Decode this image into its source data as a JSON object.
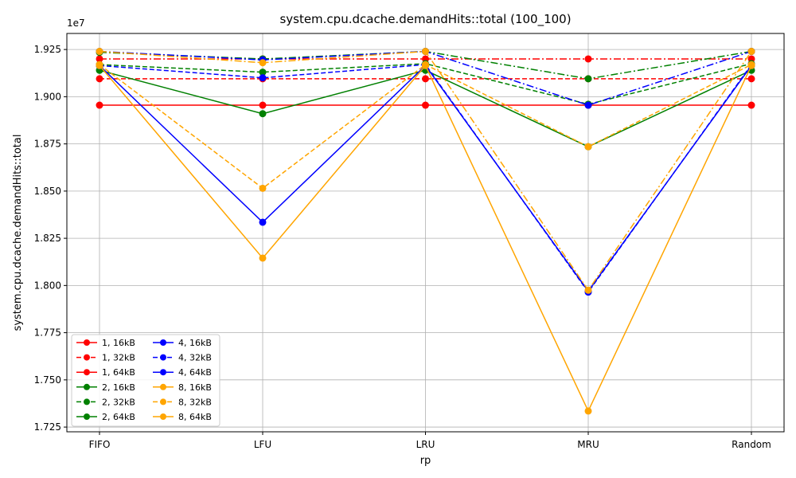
{
  "chart_data": {
    "type": "line",
    "title": "system.cpu.dcache.demandHits::total (100_100)",
    "xlabel": "rp",
    "ylabel": "system.cpu.dcache.demandHits::total",
    "y_offset_label": "1e7",
    "categories": [
      "FIFO",
      "LFU",
      "LRU",
      "MRU",
      "Random"
    ],
    "ylim": [
      1.7225,
      1.9335
    ],
    "yticks": [
      1.725,
      1.75,
      1.775,
      1.8,
      1.825,
      1.85,
      1.875,
      1.9,
      1.925
    ],
    "ytick_labels": [
      "1.725",
      "1.750",
      "1.775",
      "1.800",
      "1.825",
      "1.850",
      "1.875",
      "1.900",
      "1.925"
    ],
    "grid": true,
    "legend_position": "lower-left",
    "legend_columns": 2,
    "series": [
      {
        "name": "1, 16kB",
        "color": "#ff0000",
        "dash": "solid",
        "values": [
          1.8955,
          1.8955,
          1.8955,
          1.8955,
          1.8955
        ]
      },
      {
        "name": "1, 32kB",
        "color": "#ff0000",
        "dash": "dashed",
        "values": [
          1.9095,
          1.9095,
          1.9095,
          1.9095,
          1.9095
        ]
      },
      {
        "name": "1, 64kB",
        "color": "#ff0000",
        "dash": "dashdot",
        "values": [
          1.92,
          1.92,
          1.92,
          1.92,
          1.92
        ]
      },
      {
        "name": "2, 16kB",
        "color": "#008000",
        "dash": "solid",
        "values": [
          1.914,
          1.891,
          1.914,
          1.8735,
          1.914
        ]
      },
      {
        "name": "2, 32kB",
        "color": "#008000",
        "dash": "dashed",
        "values": [
          1.917,
          1.913,
          1.9175,
          1.896,
          1.9175
        ]
      },
      {
        "name": "2, 64kB",
        "color": "#008000",
        "dash": "dashdot",
        "values": [
          1.9235,
          1.92,
          1.924,
          1.9095,
          1.924
        ]
      },
      {
        "name": "4, 16kB",
        "color": "#0000ff",
        "dash": "solid",
        "values": [
          1.9165,
          1.8335,
          1.9165,
          1.797,
          1.9165
        ]
      },
      {
        "name": "4, 32kB",
        "color": "#0000ff",
        "dash": "dashed",
        "values": [
          1.9165,
          1.91,
          1.917,
          1.7965,
          1.917
        ]
      },
      {
        "name": "4, 64kB",
        "color": "#0000ff",
        "dash": "dashdot",
        "values": [
          1.924,
          1.9195,
          1.924,
          1.8955,
          1.924
        ]
      },
      {
        "name": "8, 16kB",
        "color": "#ffa500",
        "dash": "solid",
        "values": [
          1.9165,
          1.8145,
          1.9165,
          1.7335,
          1.9165
        ]
      },
      {
        "name": "8, 32kB",
        "color": "#ffa500",
        "dash": "dashed",
        "values": [
          1.917,
          1.8515,
          1.917,
          1.8735,
          1.917
        ]
      },
      {
        "name": "8, 64kB",
        "color": "#ffa500",
        "dash": "dashdot",
        "values": [
          1.924,
          1.918,
          1.924,
          1.7975,
          1.924
        ]
      }
    ]
  }
}
